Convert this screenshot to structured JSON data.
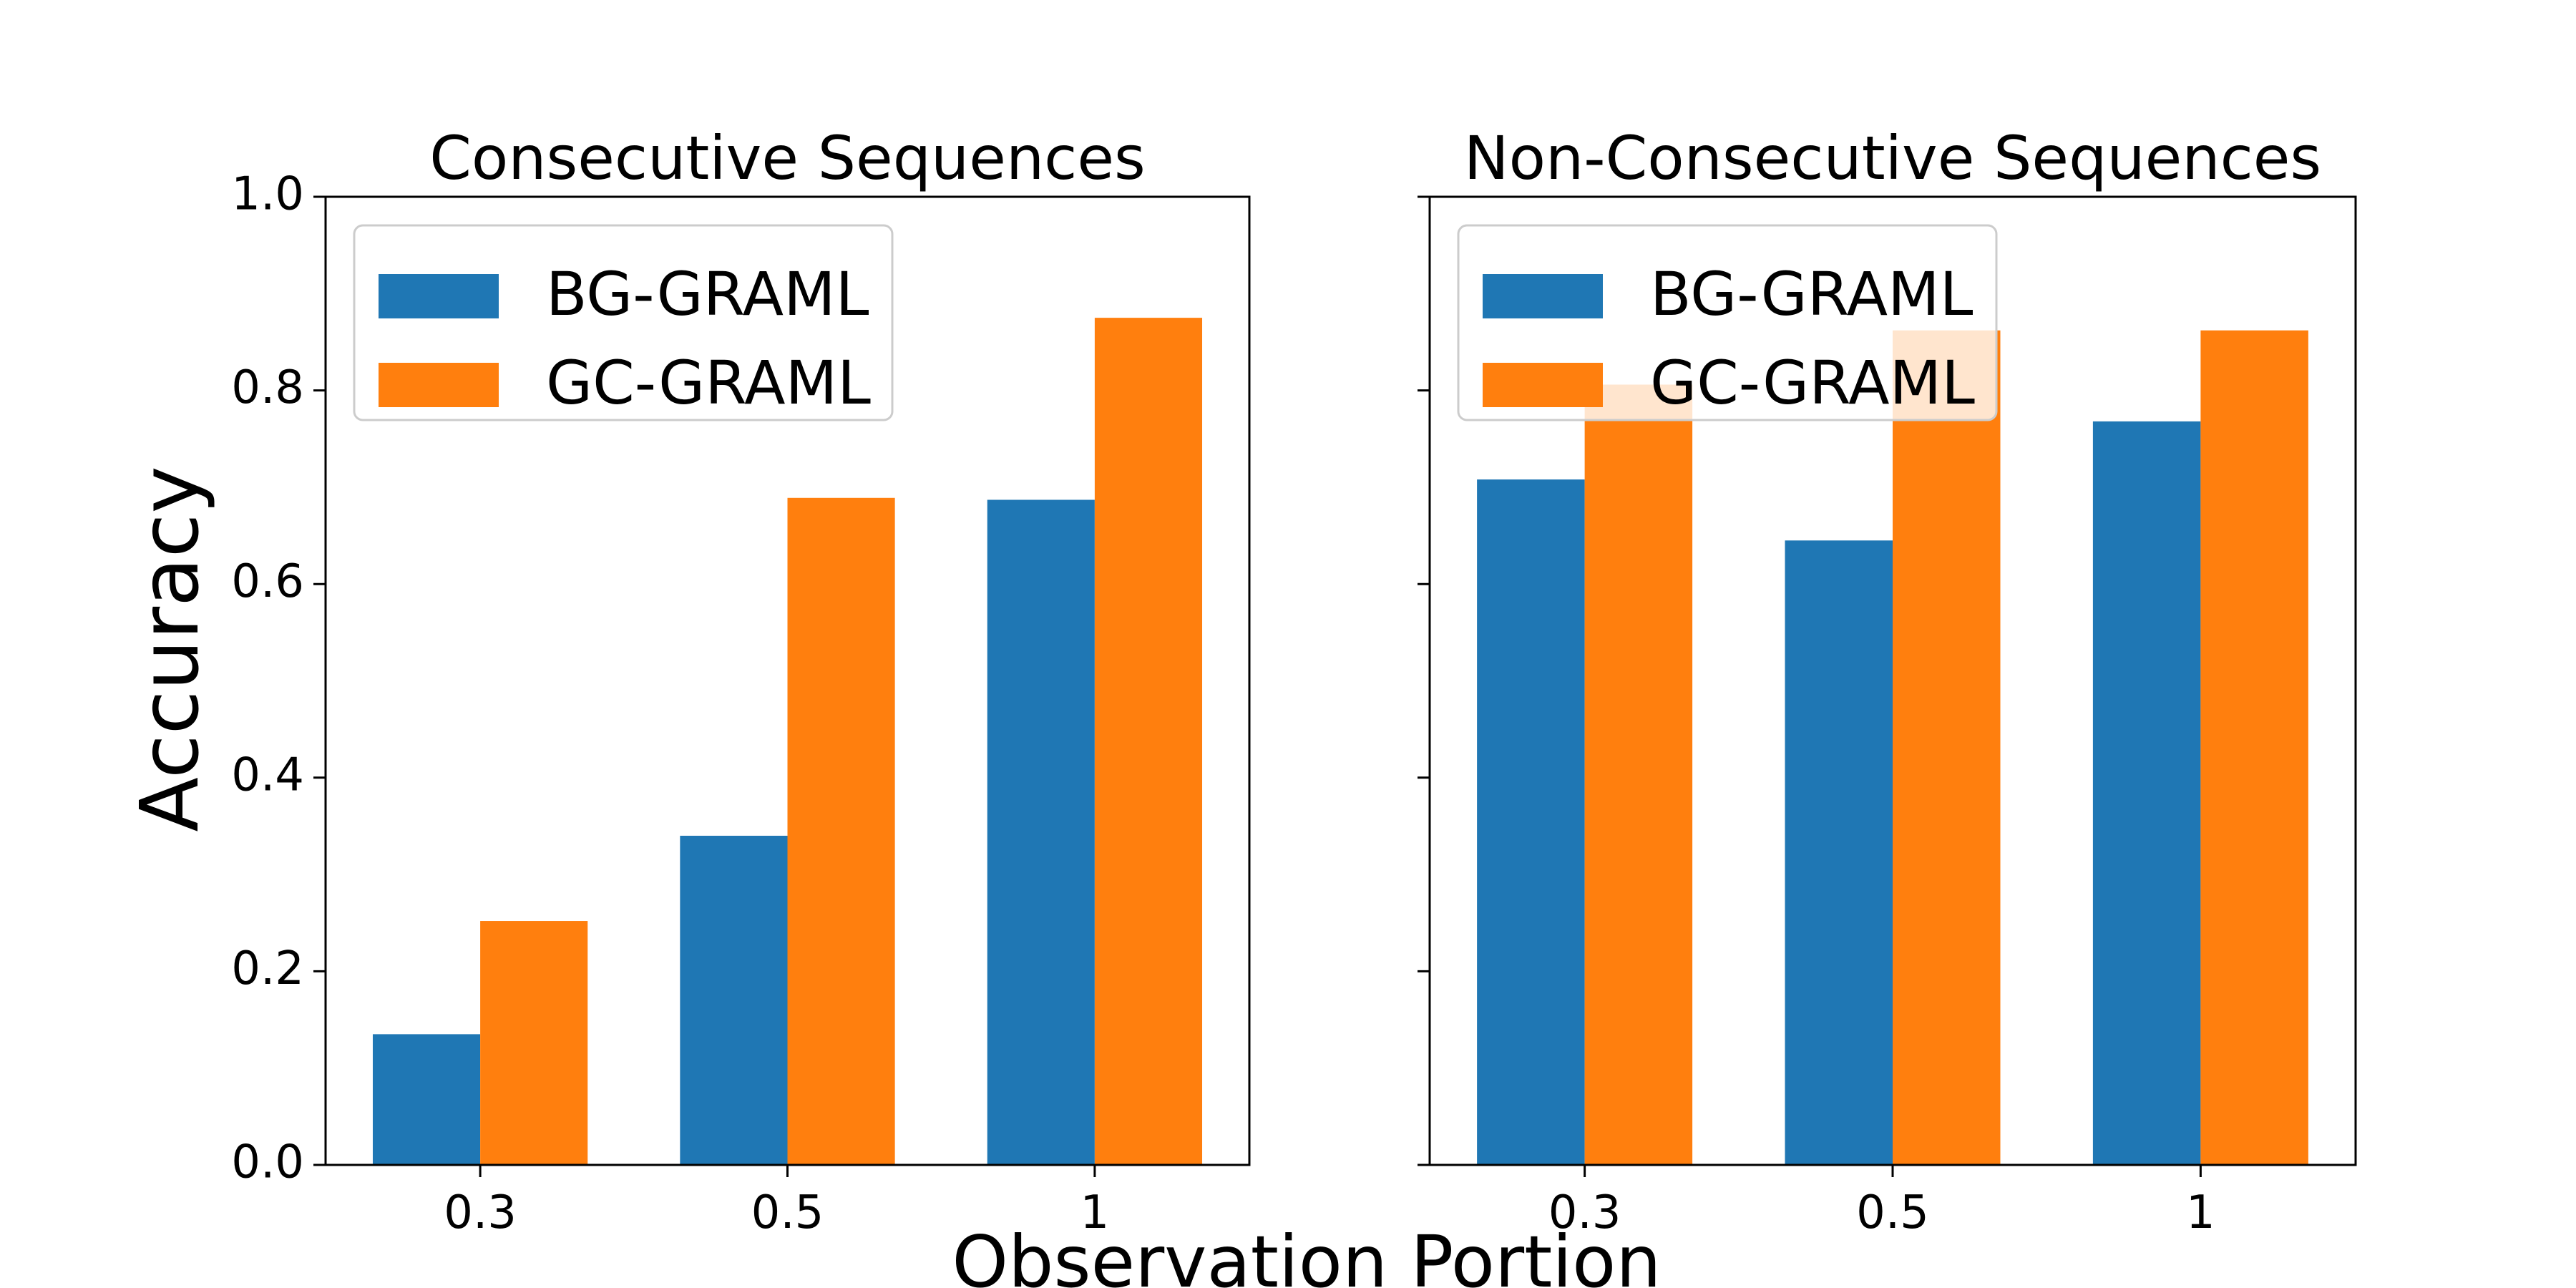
{
  "figure": {
    "ylabel": "Accuracy",
    "xlabel": "Observation Portion"
  },
  "colors": {
    "BG-GRAML": "#1f77b4",
    "GC-GRAML": "#ff7f0e"
  },
  "legend": {
    "placement": "upper-left",
    "entries": [
      "BG-GRAML",
      "GC-GRAML"
    ]
  },
  "chart_data": [
    {
      "type": "bar",
      "title": "Consecutive Sequences",
      "categories": [
        "0.3",
        "0.5",
        "1"
      ],
      "series": [
        {
          "name": "BG-GRAML",
          "values": [
            0.135,
            0.34,
            0.687
          ]
        },
        {
          "name": "GC-GRAML",
          "values": [
            0.252,
            0.689,
            0.875
          ]
        }
      ],
      "ylim": [
        0,
        1.0
      ],
      "yticks": [
        "0.0",
        "0.2",
        "0.4",
        "0.6",
        "0.8",
        "1.0"
      ],
      "grid": false
    },
    {
      "type": "bar",
      "title": "Non-Consecutive Sequences",
      "categories": [
        "0.3",
        "0.5",
        "1"
      ],
      "series": [
        {
          "name": "BG-GRAML",
          "values": [
            0.708,
            0.645,
            0.768
          ]
        },
        {
          "name": "GC-GRAML",
          "values": [
            0.806,
            0.862,
            0.862
          ]
        }
      ],
      "ylim": [
        0,
        1.0
      ],
      "grid": false
    }
  ]
}
